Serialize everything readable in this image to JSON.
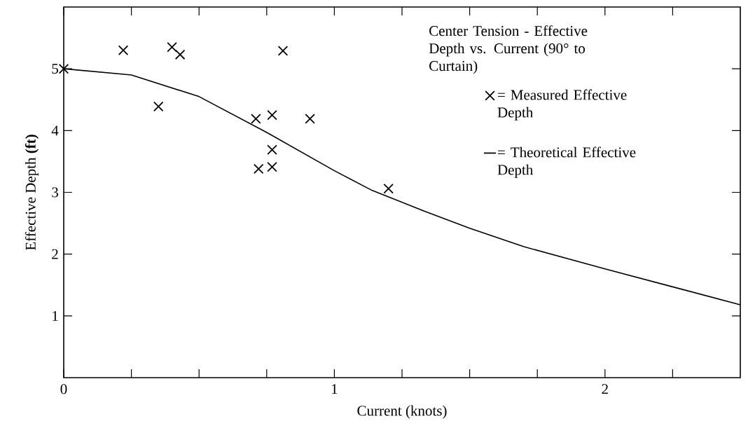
{
  "chart_data": {
    "type": "scatter",
    "legend_title": "Center Tension - Effective Depth vs. Current (90° to Curtain)",
    "xlabel": "Current (knots)",
    "ylabel": "Effective Depth **(ft)**",
    "xlim": [
      0,
      2.5
    ],
    "ylim": [
      0,
      6
    ],
    "xticks": [
      0,
      {
        "value": 0.25,
        "label": null
      },
      {
        "value": 0.5,
        "label": null
      },
      {
        "value": 0.75,
        "label": null
      },
      1,
      {
        "value": 1.25,
        "label": null
      },
      {
        "value": 1.5,
        "label": null
      },
      {
        "value": 1.75,
        "label": null
      },
      2,
      {
        "value": 2.25,
        "label": null
      }
    ],
    "yticks": [
      1,
      2,
      3,
      4,
      5
    ],
    "grid": false,
    "legend": "top right",
    "series": [
      {
        "name": "= Measured Effective Depth",
        "marker": "cross",
        "color": "#000000",
        "x": [
          0,
          0.22,
          0.4,
          0.43,
          0.35,
          0.81,
          0.71,
          0.77,
          0.91,
          0.77,
          0.72,
          0.77,
          1.2
        ],
        "values": [
          5.0,
          5.3,
          5.35,
          5.23,
          4.39,
          5.29,
          4.19,
          4.25,
          4.19,
          3.69,
          3.38,
          3.41,
          3.06
        ]
      },
      {
        "name": "= Theoretical Effective Depth",
        "type": "line",
        "marker": "none",
        "line_style": "solid",
        "color": "#000000",
        "x": [
          0,
          0.25,
          0.5,
          0.75,
          1.0,
          1.14,
          1.33,
          1.5,
          1.7,
          2.0,
          2.25,
          2.5
        ],
        "values": [
          5.0,
          4.9,
          4.55,
          3.97,
          3.35,
          3.03,
          2.7,
          2.42,
          2.12,
          1.76,
          1.47,
          1.18
        ]
      }
    ]
  }
}
